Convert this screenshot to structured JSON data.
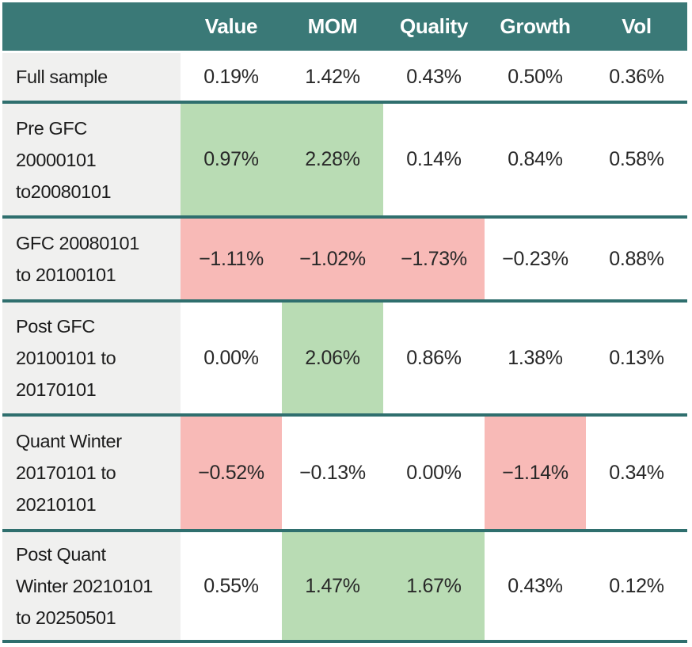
{
  "colors": {
    "header_bg": "#3a7977",
    "header_text": "#ffffff",
    "row_divider": "#2f6f6e",
    "label_cell_bg": "#f0f0ef",
    "positive_highlight": "#b9dcb4",
    "negative_highlight": "#f8bab7",
    "body_text": "#202020",
    "page_bg": "#ffffff"
  },
  "table": {
    "columns": [
      "Value",
      "MOM",
      "Quality",
      "Growth",
      "Vol"
    ],
    "rows": [
      {
        "label": "Full sample",
        "values": [
          "0.19%",
          "1.42%",
          "0.43%",
          "0.50%",
          "0.36%"
        ]
      },
      {
        "label": "Pre GFC\n20000101\nto20080101",
        "values": [
          "0.97%",
          "2.28%",
          "0.14%",
          "0.84%",
          "0.58%"
        ]
      },
      {
        "label": "GFC 20080101\nto 20100101",
        "values": [
          "−1.11%",
          "−1.02%",
          "−1.73%",
          "−0.23%",
          "0.88%"
        ]
      },
      {
        "label": "Post GFC\n20100101 to\n20170101",
        "values": [
          "0.00%",
          "2.06%",
          "0.86%",
          "1.38%",
          "0.13%"
        ]
      },
      {
        "label": "Quant Winter\n20170101 to\n20210101",
        "values": [
          "−0.52%",
          "−0.13%",
          "0.00%",
          "−1.14%",
          "0.34%"
        ]
      },
      {
        "label": "Post Quant\nWinter 20210101\nto 20250501",
        "values": [
          "0.55%",
          "1.47%",
          "1.67%",
          "0.43%",
          "0.12%"
        ]
      }
    ]
  },
  "chart_data": {
    "type": "table",
    "title": "",
    "columns": [
      "Value",
      "MOM",
      "Quality",
      "Growth",
      "Vol"
    ],
    "row_labels": [
      "Full sample",
      "Pre GFC 20000101 to20080101",
      "GFC 20080101 to 20100101",
      "Post GFC 20100101 to 20170101",
      "Quant Winter 20170101 to 20210101",
      "Post Quant Winter 20210101 to 20250501"
    ],
    "values_pct": [
      [
        0.19,
        1.42,
        0.43,
        0.5,
        0.36
      ],
      [
        0.97,
        2.28,
        0.14,
        0.84,
        0.58
      ],
      [
        -1.11,
        -1.02,
        -1.73,
        -0.23,
        0.88
      ],
      [
        0.0,
        2.06,
        0.86,
        1.38,
        0.13
      ],
      [
        -0.52,
        -0.13,
        0.0,
        -1.14,
        0.34
      ],
      [
        0.55,
        1.47,
        1.67,
        0.43,
        0.12
      ]
    ],
    "cell_highlights": [
      [
        "none",
        "none",
        "none",
        "none",
        "none"
      ],
      [
        "positive",
        "positive",
        "none",
        "none",
        "none"
      ],
      [
        "negative",
        "negative",
        "negative",
        "none",
        "none"
      ],
      [
        "none",
        "positive",
        "none",
        "none",
        "none"
      ],
      [
        "negative",
        "none",
        "none",
        "negative",
        "none"
      ],
      [
        "none",
        "positive",
        "positive",
        "none",
        "none"
      ]
    ],
    "layout_hints": {
      "highlight_positive_color": "#b9dcb4",
      "highlight_negative_color": "#f8bab7",
      "header_style": "dark-teal band, white bold text",
      "row_separators": "thick teal horizontal rules"
    }
  }
}
